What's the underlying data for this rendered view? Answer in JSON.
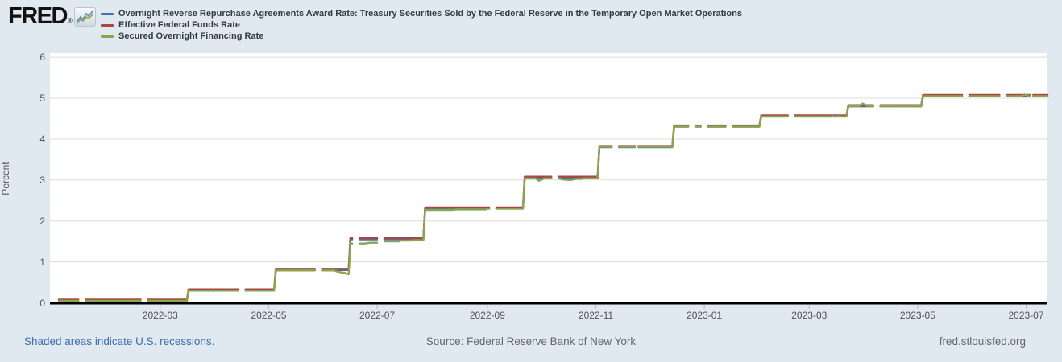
{
  "header": {
    "logo_text": "FRED",
    "logo_reg": "®",
    "legend": [
      {
        "id": "rrp-award-rate",
        "label": "Overnight Reverse Repurchase Agreements Award Rate: Treasury Securities Sold by the Federal Reserve in the Temporary Open Market Operations",
        "color": "#4572a7"
      },
      {
        "id": "effr",
        "label": "Effective Federal Funds Rate",
        "color": "#aa4643"
      },
      {
        "id": "sofr",
        "label": "Secured Overnight Financing Rate",
        "color": "#89a54e"
      }
    ]
  },
  "chart_data": {
    "type": "line",
    "title": "",
    "xlabel": "",
    "ylabel": "Percent",
    "ylim": [
      0,
      6
    ],
    "yticks": [
      0,
      1,
      2,
      3,
      4,
      5,
      6
    ],
    "xticks": [
      "2022-03",
      "2022-05",
      "2022-07",
      "2022-09",
      "2022-11",
      "2023-01",
      "2023-03",
      "2023-05",
      "2023-07"
    ],
    "x_domain": [
      "2021-12-29",
      "2023-07-13"
    ],
    "data_start": "2022-01-03",
    "data_end": "2023-07-13",
    "grid": "horizontal",
    "legend_position": "top-left",
    "frequency": "daily-weekdays",
    "gap_dates": [
      "2022-01-17",
      "2022-02-21",
      "2022-04-15",
      "2022-05-30",
      "2022-06-20",
      "2022-07-04",
      "2022-09-05",
      "2022-10-10",
      "2022-11-11",
      "2022-11-24",
      "2022-12-26",
      "2023-01-02",
      "2023-01-16",
      "2023-02-20",
      "2023-04-07",
      "2023-05-29",
      "2023-06-19",
      "2023-07-04"
    ],
    "series": [
      {
        "id": "rrp-award-rate",
        "name": "Overnight Reverse Repurchase Agreements Award Rate: Treasury Securities Sold by the Federal Reserve in the Temporary Open Market Operations",
        "color": "#4572a7",
        "steps": [
          [
            "2022-01-03",
            0.05
          ],
          [
            "2022-03-17",
            0.3
          ],
          [
            "2022-05-05",
            0.8
          ],
          [
            "2022-06-16",
            1.55
          ],
          [
            "2022-07-28",
            2.3
          ],
          [
            "2022-09-22",
            3.05
          ],
          [
            "2022-11-03",
            3.8
          ],
          [
            "2022-12-15",
            4.3
          ],
          [
            "2023-02-02",
            4.55
          ],
          [
            "2023-03-23",
            4.8
          ],
          [
            "2023-05-04",
            5.05
          ]
        ],
        "overrides": []
      },
      {
        "id": "effr",
        "name": "Effective Federal Funds Rate",
        "color": "#aa4643",
        "steps": [
          [
            "2022-01-03",
            0.08
          ],
          [
            "2022-03-17",
            0.33
          ],
          [
            "2022-05-05",
            0.83
          ],
          [
            "2022-06-16",
            1.58
          ],
          [
            "2022-07-28",
            2.33
          ],
          [
            "2022-09-22",
            3.08
          ],
          [
            "2022-11-03",
            3.83
          ],
          [
            "2022-12-15",
            4.33
          ],
          [
            "2023-02-02",
            4.58
          ],
          [
            "2023-03-23",
            4.83
          ],
          [
            "2023-05-04",
            5.08
          ]
        ],
        "overrides": []
      },
      {
        "id": "sofr",
        "name": "Secured Overnight Financing Rate",
        "color": "#89a54e",
        "steps": [
          [
            "2022-01-03",
            0.05
          ],
          [
            "2022-03-17",
            0.3
          ],
          [
            "2022-05-05",
            0.79
          ],
          [
            "2022-06-16",
            1.45
          ],
          [
            "2022-06-27",
            1.47
          ],
          [
            "2022-07-05",
            1.5
          ],
          [
            "2022-07-14",
            1.52
          ],
          [
            "2022-07-21",
            1.53
          ],
          [
            "2022-07-28",
            2.27
          ],
          [
            "2022-08-15",
            2.28
          ],
          [
            "2022-09-01",
            2.3
          ],
          [
            "2022-09-22",
            3.04
          ],
          [
            "2022-11-03",
            3.81
          ],
          [
            "2022-12-15",
            4.3
          ],
          [
            "2023-02-02",
            4.55
          ],
          [
            "2023-03-23",
            4.8
          ],
          [
            "2023-05-04",
            5.05
          ]
        ],
        "overrides": [
          [
            "2022-03-31",
            0.29
          ],
          [
            "2022-06-08",
            0.77
          ],
          [
            "2022-06-09",
            0.76
          ],
          [
            "2022-06-10",
            0.75
          ],
          [
            "2022-06-13",
            0.73
          ],
          [
            "2022-06-14",
            0.71
          ],
          [
            "2022-06-15",
            0.7
          ],
          [
            "2022-09-29",
            3.01
          ],
          [
            "2022-09-30",
            2.98
          ],
          [
            "2022-10-12",
            3.03
          ],
          [
            "2022-10-13",
            3.02
          ],
          [
            "2022-10-14",
            3.01
          ],
          [
            "2022-10-17",
            3.0
          ],
          [
            "2022-10-18",
            3.0
          ],
          [
            "2022-10-19",
            3.01
          ],
          [
            "2022-10-20",
            3.02
          ],
          [
            "2022-10-21",
            3.03
          ],
          [
            "2022-10-24",
            3.03
          ],
          [
            "2022-12-30",
            4.32
          ],
          [
            "2023-03-14",
            4.56
          ],
          [
            "2023-03-15",
            4.55
          ],
          [
            "2023-03-16",
            4.55
          ],
          [
            "2023-03-17",
            4.56
          ],
          [
            "2023-03-30",
            4.84
          ],
          [
            "2023-03-31",
            4.87
          ],
          [
            "2023-06-29",
            5.07
          ],
          [
            "2023-06-30",
            5.09
          ]
        ]
      }
    ],
    "colors": {
      "background": "#e1e9f0",
      "plot_background": "#ffffff",
      "gridline": "#dcdcdc",
      "axis_line": "#000000",
      "tick_mark": "#aebecb",
      "axis_text": "#4d5359"
    }
  },
  "footer": {
    "note": "Shaded areas indicate U.S. recessions.",
    "source": "Source: Federal Reserve Bank of New York",
    "site": "fred.stlouisfed.org"
  }
}
